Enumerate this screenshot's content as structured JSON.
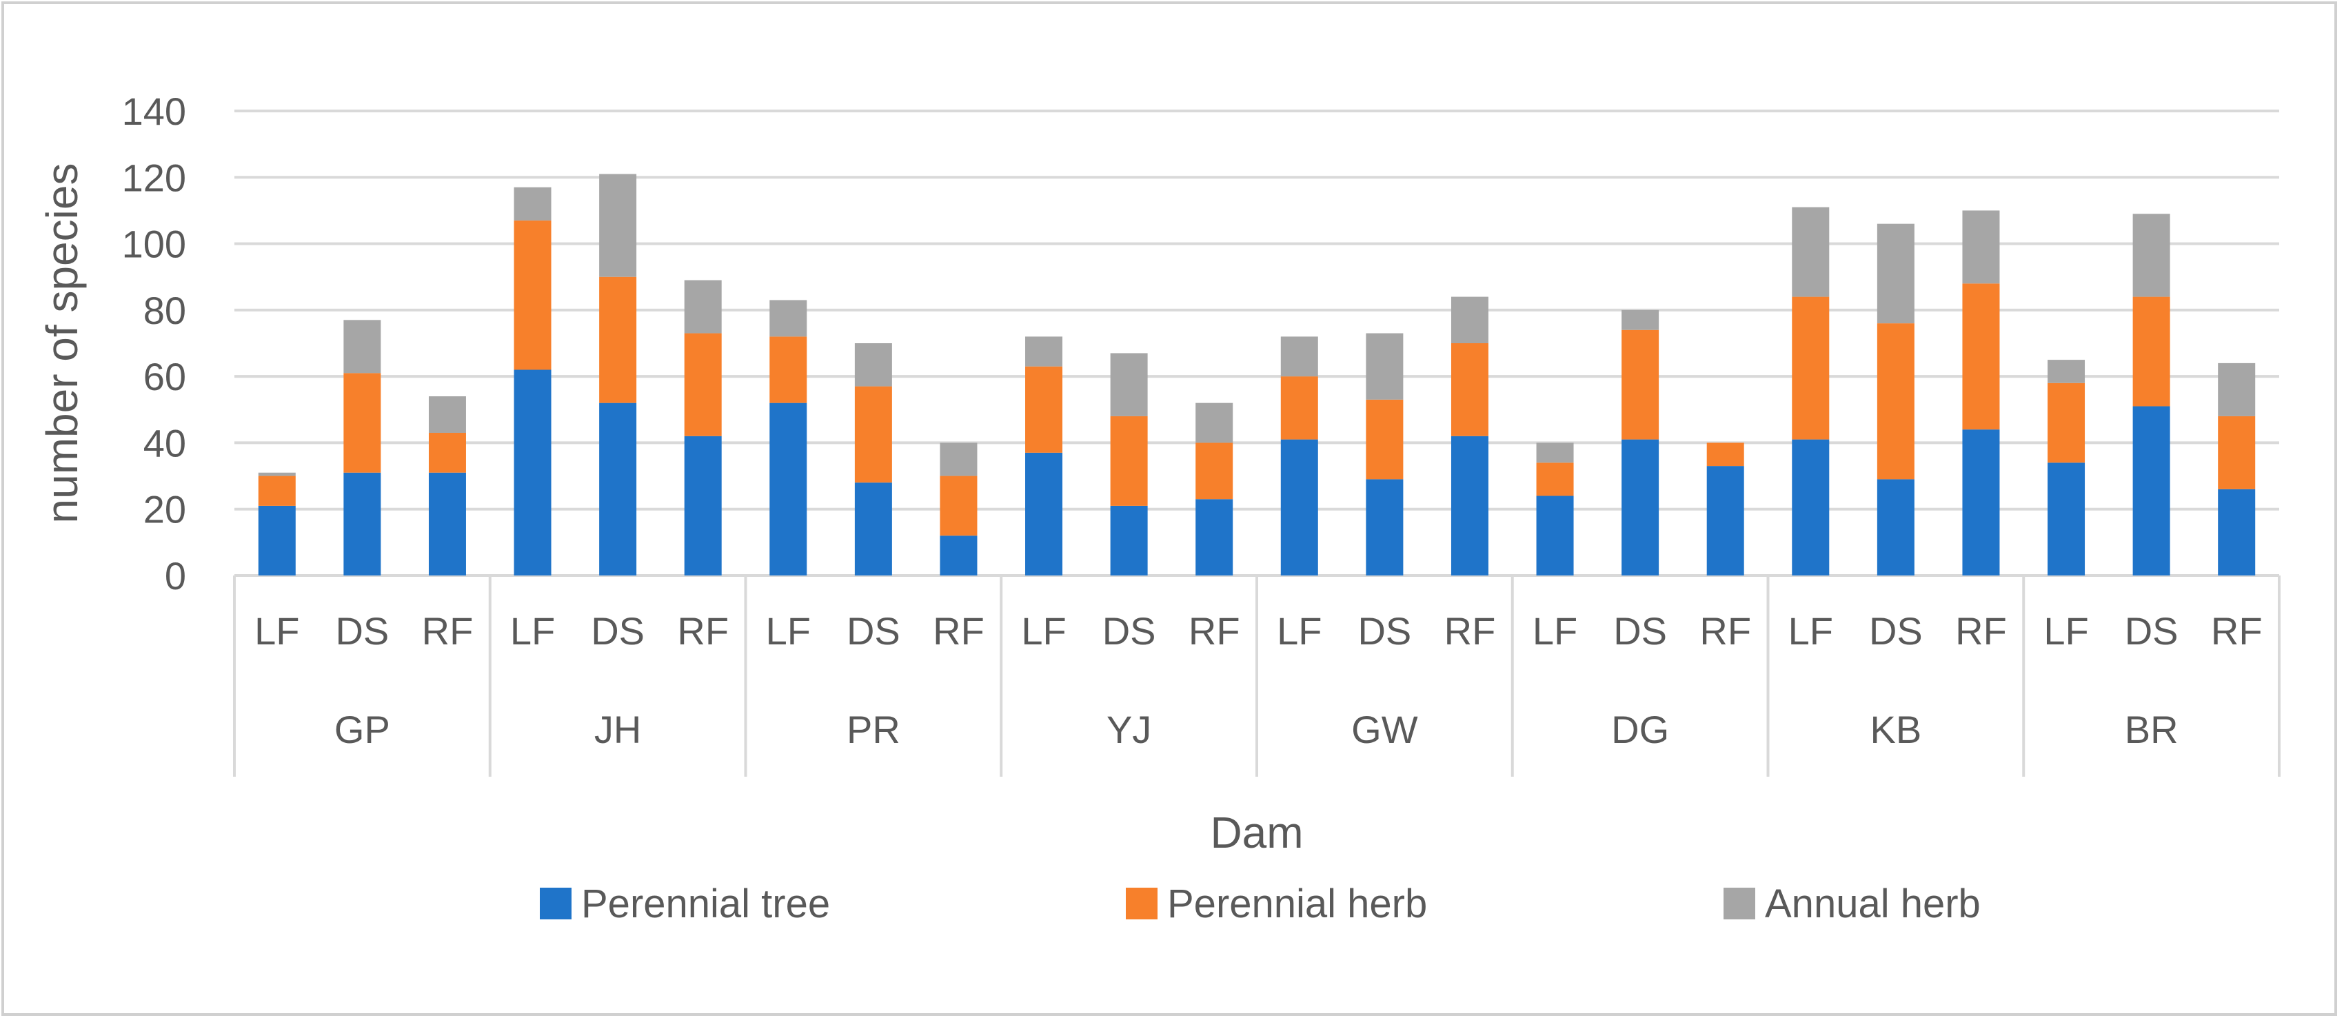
{
  "chart_data": {
    "type": "bar",
    "stacked": true,
    "title": "",
    "xlabel": "Dam",
    "ylabel": "number of species",
    "ylim": [
      0,
      140
    ],
    "yticks": [
      0,
      20,
      40,
      60,
      80,
      100,
      120,
      140
    ],
    "grid": true,
    "legend_position": "bottom",
    "groups": [
      "GP",
      "JH",
      "PR",
      "YJ",
      "GW",
      "DG",
      "KB",
      "BR"
    ],
    "subcategories": [
      "LF",
      "DS",
      "RF"
    ],
    "colors": {
      "Perennial tree": "#1f74c9",
      "Perennial herb": "#f7802b",
      "Annual herb": "#a6a6a6"
    },
    "series": [
      {
        "name": "Perennial tree",
        "values": [
          21,
          31,
          31,
          62,
          52,
          42,
          52,
          28,
          12,
          37,
          21,
          23,
          41,
          29,
          42,
          24,
          41,
          33,
          41,
          29,
          44,
          34,
          51,
          26
        ]
      },
      {
        "name": "Perennial herb",
        "values": [
          9,
          30,
          12,
          45,
          38,
          31,
          20,
          29,
          18,
          26,
          27,
          17,
          19,
          24,
          28,
          10,
          33,
          7,
          43,
          47,
          44,
          24,
          33,
          22
        ]
      },
      {
        "name": "Annual herb",
        "values": [
          1,
          16,
          11,
          10,
          31,
          16,
          11,
          13,
          10,
          9,
          19,
          12,
          12,
          20,
          14,
          6,
          6,
          0,
          27,
          30,
          22,
          7,
          25,
          16
        ]
      }
    ]
  }
}
